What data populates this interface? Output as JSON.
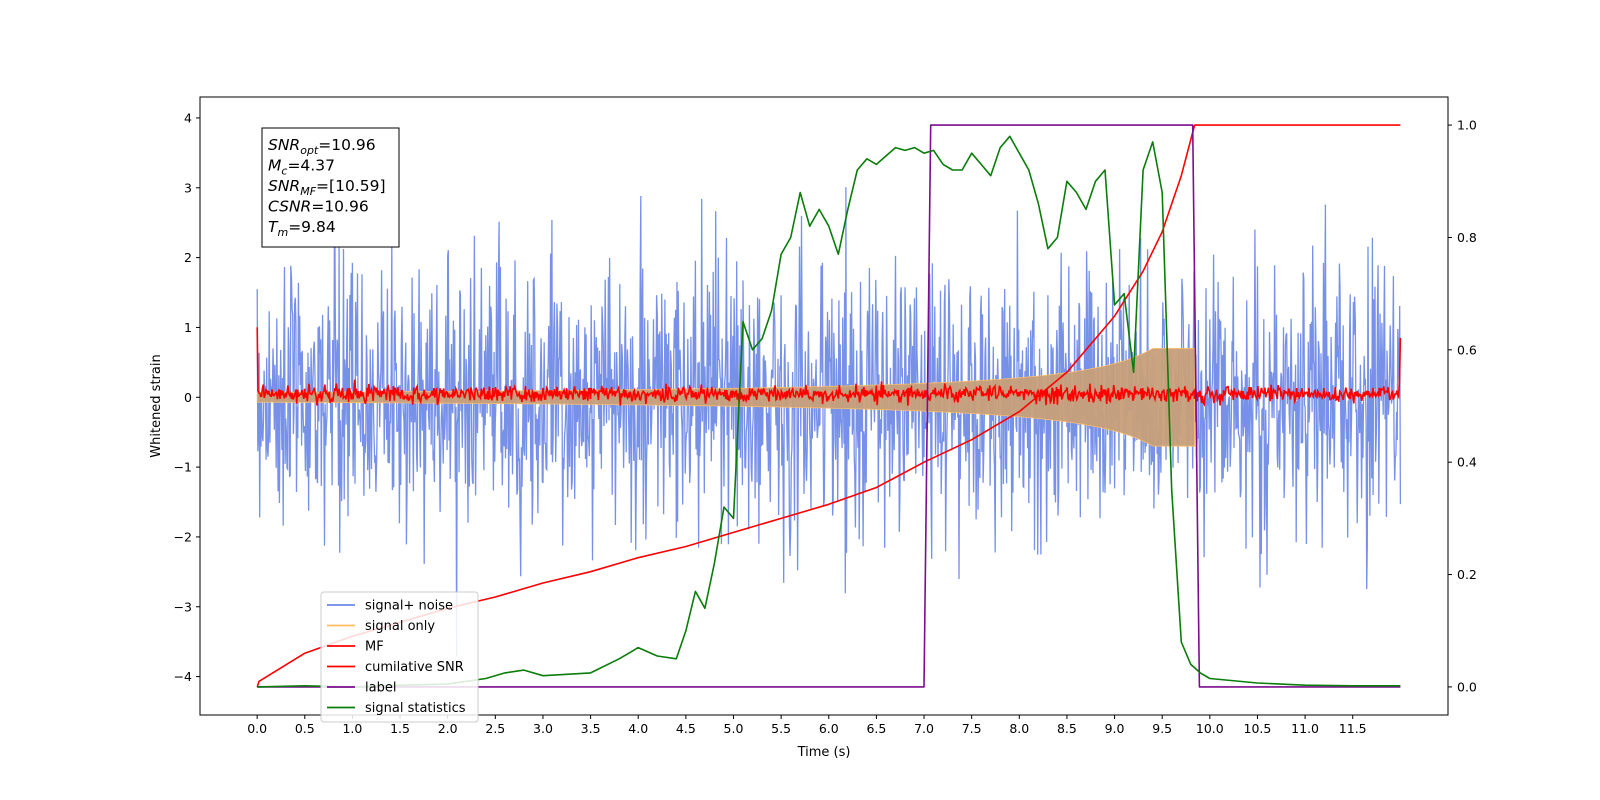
{
  "chart_data": {
    "type": "line",
    "xlabel": "Time (s)",
    "ylabel": "Whitened strain",
    "xlim": [
      -0.6,
      12.5
    ],
    "ylim": [
      -4.55,
      4.3
    ],
    "y2lim": [
      -0.05,
      1.05
    ],
    "x_ticks": [
      0.0,
      0.5,
      1.0,
      1.5,
      2.0,
      2.5,
      3.0,
      3.5,
      4.0,
      4.5,
      5.0,
      5.5,
      6.0,
      6.5,
      7.0,
      7.5,
      8.0,
      8.5,
      9.0,
      9.5,
      10.0,
      10.5,
      11.0,
      11.5
    ],
    "x_tick_labels": [
      "0.0",
      "0.5",
      "1.0",
      "1.5",
      "2.0",
      "2.5",
      "3.0",
      "3.5",
      "4.0",
      "4.5",
      "5.0",
      "5.5",
      "6.0",
      "6.5",
      "7.0",
      "7.5",
      "8.0",
      "8.5",
      "9.0",
      "9.5",
      "10.0",
      "10.5",
      "11.0",
      "11.5"
    ],
    "y_ticks": [
      -4,
      -3,
      -2,
      -1,
      0,
      1,
      2,
      3,
      4
    ],
    "y_tick_labels": [
      "−4",
      "−3",
      "−2",
      "−1",
      "0",
      "1",
      "2",
      "3",
      "4"
    ],
    "y2_ticks": [
      0.0,
      0.2,
      0.4,
      0.6,
      0.8,
      1.0
    ],
    "y2_tick_labels": [
      "0.0",
      "0.2",
      "0.4",
      "0.6",
      "0.8",
      "1.0"
    ],
    "grid": false,
    "legend_position": "lower-left",
    "series": [
      {
        "name": "signal+ noise",
        "color": "#6b88e6",
        "kind": "noise_band",
        "x_range": [
          0.0,
          12.0
        ],
        "approx_range": [
          -3.7,
          3.9
        ]
      },
      {
        "name": "signal only",
        "color": "#ffbf66",
        "kind": "chirp",
        "x_range": [
          0.0,
          9.84
        ],
        "amplitude_end": 0.7
      },
      {
        "name": "MF",
        "color": "#ff0000",
        "kind": "noise_band",
        "x_range": [
          0.0,
          12.0
        ],
        "approx_range": [
          -0.12,
          0.35
        ]
      },
      {
        "name": "cumilative SNR",
        "color": "#ff0000",
        "axis": "right",
        "x": [
          0.0,
          0.02,
          0.5,
          1.0,
          1.5,
          2.0,
          2.5,
          3.0,
          3.5,
          4.0,
          4.5,
          5.0,
          5.5,
          6.0,
          6.5,
          7.0,
          7.5,
          8.0,
          8.5,
          9.0,
          9.3,
          9.5,
          9.7,
          9.84,
          12.0
        ],
        "y": [
          0.0,
          0.01,
          0.06,
          0.09,
          0.115,
          0.14,
          0.16,
          0.185,
          0.205,
          0.23,
          0.25,
          0.275,
          0.3,
          0.325,
          0.355,
          0.4,
          0.44,
          0.49,
          0.56,
          0.66,
          0.74,
          0.81,
          0.91,
          1.0,
          1.0
        ]
      },
      {
        "name": "label",
        "color": "#7b0d8e",
        "axis": "right",
        "x": [
          0.0,
          7.0,
          7.07,
          9.82,
          9.89,
          12.0
        ],
        "y": [
          0.0,
          0.0,
          1.0,
          1.0,
          0.0,
          0.0
        ]
      },
      {
        "name": "signal statistics",
        "color": "#0a7d0a",
        "axis": "right",
        "x": [
          0.0,
          0.5,
          1.0,
          1.5,
          2.0,
          2.4,
          2.6,
          2.8,
          3.0,
          3.5,
          3.8,
          4.0,
          4.2,
          4.4,
          4.5,
          4.6,
          4.7,
          4.8,
          4.9,
          5.0,
          5.1,
          5.2,
          5.3,
          5.4,
          5.5,
          5.6,
          5.7,
          5.8,
          5.9,
          6.0,
          6.1,
          6.2,
          6.3,
          6.4,
          6.5,
          6.6,
          6.7,
          6.8,
          6.9,
          7.0,
          7.1,
          7.2,
          7.3,
          7.4,
          7.5,
          7.6,
          7.7,
          7.8,
          7.9,
          8.0,
          8.1,
          8.2,
          8.3,
          8.4,
          8.5,
          8.6,
          8.7,
          8.8,
          8.9,
          9.0,
          9.1,
          9.2,
          9.3,
          9.4,
          9.5,
          9.6,
          9.7,
          9.8,
          9.9,
          10.0,
          10.5,
          11.0,
          11.5,
          12.0
        ],
        "y": [
          0.0,
          0.002,
          0.0,
          0.003,
          0.005,
          0.015,
          0.025,
          0.03,
          0.02,
          0.025,
          0.05,
          0.07,
          0.055,
          0.05,
          0.1,
          0.17,
          0.14,
          0.22,
          0.32,
          0.3,
          0.65,
          0.6,
          0.62,
          0.67,
          0.77,
          0.8,
          0.88,
          0.82,
          0.85,
          0.82,
          0.77,
          0.85,
          0.92,
          0.94,
          0.93,
          0.945,
          0.96,
          0.955,
          0.96,
          0.95,
          0.955,
          0.93,
          0.92,
          0.92,
          0.95,
          0.93,
          0.91,
          0.96,
          0.98,
          0.95,
          0.92,
          0.86,
          0.78,
          0.8,
          0.9,
          0.88,
          0.85,
          0.9,
          0.92,
          0.68,
          0.7,
          0.56,
          0.92,
          0.97,
          0.88,
          0.35,
          0.08,
          0.04,
          0.025,
          0.015,
          0.007,
          0.003,
          0.002,
          0.002
        ]
      }
    ],
    "annotations": [
      {
        "prefix": "SNR",
        "sub": "opt",
        "value": "=10.96"
      },
      {
        "prefix": "M",
        "sub": "c",
        "value": "=4.37"
      },
      {
        "prefix": "SNR",
        "sub": "MF",
        "value": "=[10.59]"
      },
      {
        "prefix": "CSNR",
        "sub": "",
        "value": "=10.96"
      },
      {
        "prefix": "T",
        "sub": "m",
        "value": "=9.84"
      }
    ]
  }
}
